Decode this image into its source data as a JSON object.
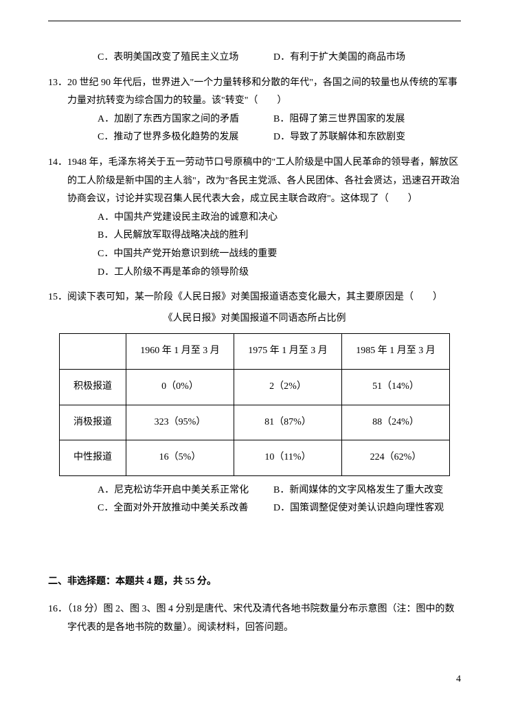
{
  "q12_opts": {
    "c": "C．表明美国改变了殖民主义立场",
    "d": "D．有利于扩大美国的商品市场"
  },
  "q13": {
    "stem": "13．20 世纪 90 年代后，世界进入\"一个力量转移和分散的年代\"，各国之间的较量也从传统的军事力量对抗转变为综合国力的较量。该\"转变\"（　　）",
    "a": "A．加剧了东西方国家之间的矛盾",
    "b": "B．阻碍了第三世界国家的发展",
    "c": "C．推动了世界多极化趋势的发展",
    "d": "D．导致了苏联解体和东欧剧变"
  },
  "q14": {
    "stem": "14．1948 年，毛泽东将关于五一劳动节口号原稿中的\"工人阶级是中国人民革命的领导者，解放区的工人阶级是新中国的主人翁\"，改为\"各民主党派、各人民团体、各社会贤达，迅速召开政治协商会议，讨论并实现召集人民代表大会，成立民主联合政府\"。这体现了（　　）",
    "a": "A．中国共产党建设民主政治的诚意和决心",
    "b": "B．人民解放军取得战略决战的胜利",
    "c": "C．中国共产党开始意识到统一战线的重要",
    "d": "D．工人阶级不再是革命的领导阶级"
  },
  "q15": {
    "stem": "15．阅读下表可知，某一阶段《人民日报》对美国报道语态变化最大，其主要原因是（　　）",
    "table_title": "《人民日报》对美国报道不同语态所占比例",
    "table": {
      "columns": [
        "",
        "1960 年 1 月至 3 月",
        "1975 年 1 月至 3 月",
        "1985 年 1 月至 3 月"
      ],
      "rows": [
        [
          "积极报道",
          "0（0%）",
          "2（2%）",
          "51（14%）"
        ],
        [
          "消极报道",
          "323（95%）",
          "81（87%）",
          "88（24%）"
        ],
        [
          "中性报道",
          "16（5%）",
          "10（11%）",
          "224（62%）"
        ]
      ]
    },
    "a": "A．尼克松访华开启中美关系正常化",
    "b": "B．新闻媒体的文字风格发生了重大改变",
    "c": "C．全面对外开放推动中美关系改善",
    "d": "D．国策调整促使对美认识趋向理性客观"
  },
  "section2": {
    "title": "二、非选择题：本题共 4 题，共 55 分。",
    "q16": "16．（18 分）图 2、图 3、图 4 分别是唐代、宋代及清代各地书院数量分布示意图（注：图中的数字代表的是各地书院的数量）。阅读材料，回答问题。"
  },
  "page_number": "4"
}
